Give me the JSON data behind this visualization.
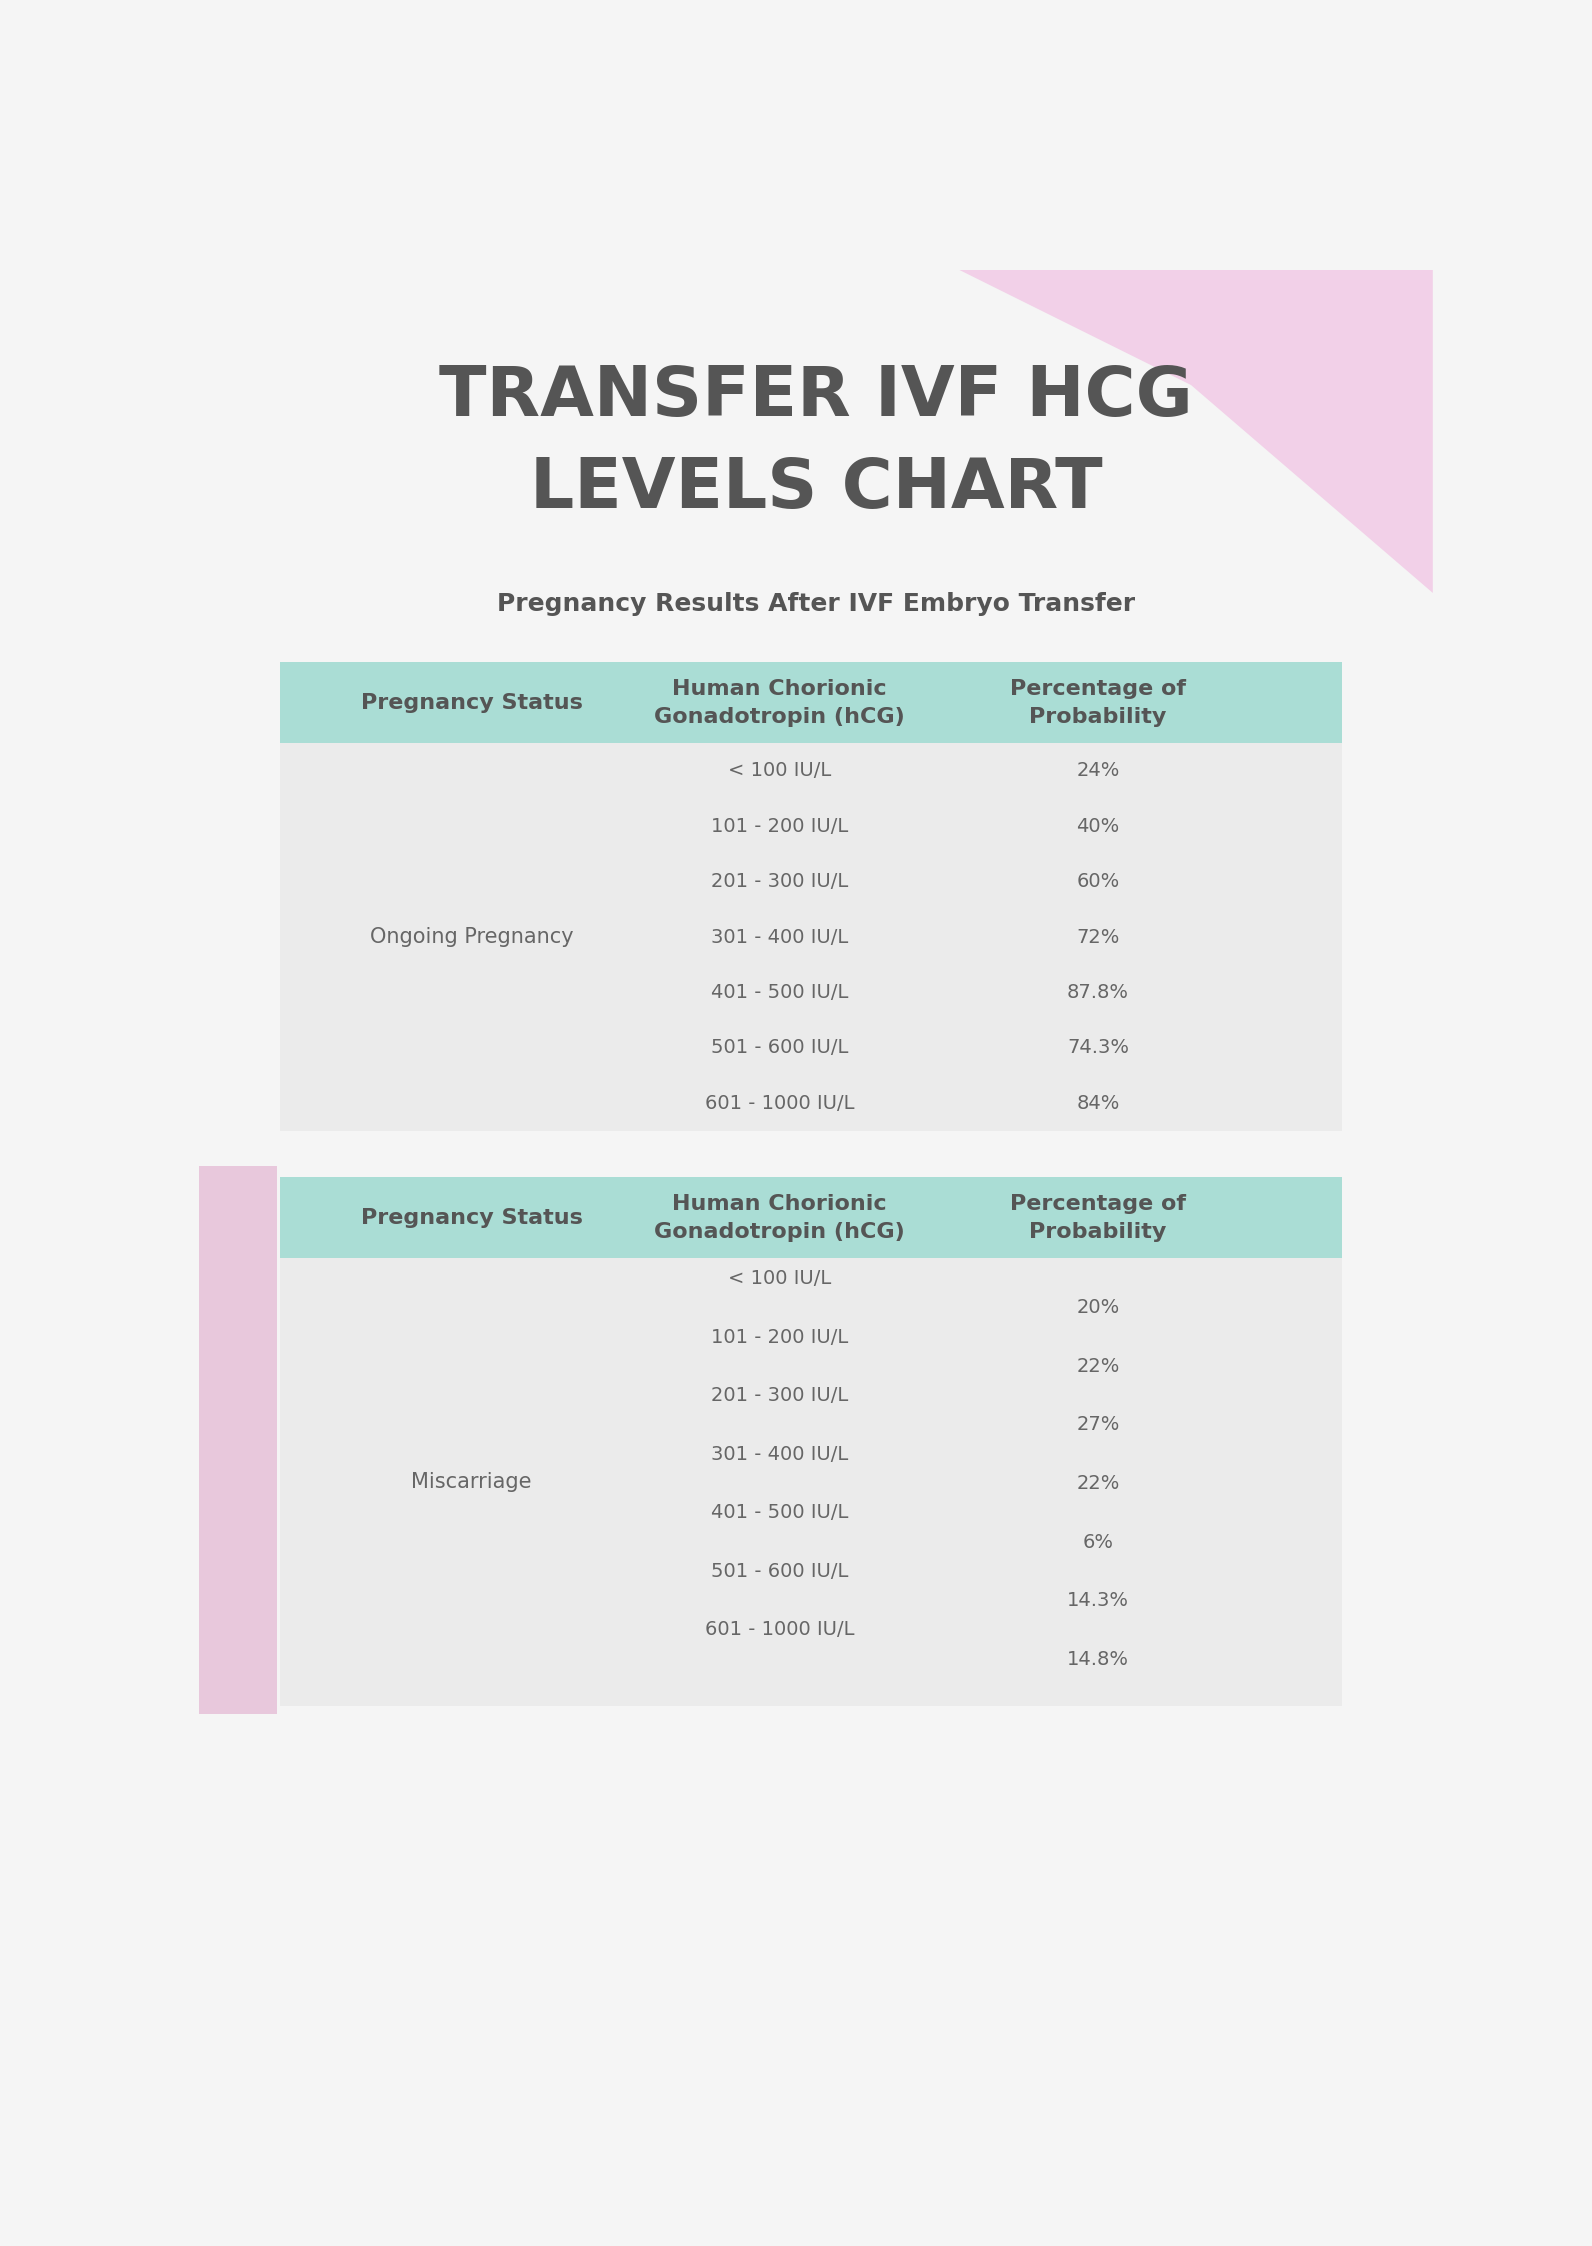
{
  "title_line1": "TRANSFER IVF HCG",
  "title_line2": "LEVELS CHART",
  "subtitle": "Pregnancy Results After IVF Embryo Transfer",
  "title_color": "#555555",
  "subtitle_color": "#555555",
  "bg_color": "#f5f5f5",
  "pink_decoration_color": "#f2d0e8",
  "pink_side_color": "#e8c8dc",
  "header_bg_color": "#aaddd5",
  "data_bg_color": "#ebebeb",
  "header_text_color": "#555555",
  "data_text_color": "#666666",
  "col1_header": "Pregnancy Status",
  "col2_header": "Human Chorionic\nGonadotropin (hCG)",
  "col3_header": "Percentage of\nProbability",
  "table1_status": "Ongoing Pregnancy",
  "table2_status": "Miscarriage",
  "hcg_ranges": [
    "< 100 IU/L",
    "101 - 200 IU/L",
    "201 - 300 IU/L",
    "301 - 400 IU/L",
    "401 - 500 IU/L",
    "501 - 600 IU/L",
    "601 - 1000 IU/L"
  ],
  "table1_percentages": [
    "24%",
    "40%",
    "60%",
    "72%",
    "87.8%",
    "74.3%",
    "84%"
  ],
  "table2_percentages": [
    "20%",
    "22%",
    "27%",
    "22%",
    "6%",
    "14.3%",
    "14.8%"
  ],
  "fig_width": 15.92,
  "fig_height": 22.46
}
